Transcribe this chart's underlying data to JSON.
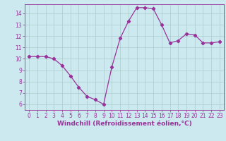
{
  "x": [
    0,
    1,
    2,
    3,
    4,
    5,
    6,
    7,
    8,
    9,
    10,
    11,
    12,
    13,
    14,
    15,
    16,
    17,
    18,
    19,
    20,
    21,
    22,
    23
  ],
  "y": [
    10.2,
    10.2,
    10.2,
    10.0,
    9.4,
    8.5,
    7.5,
    6.7,
    6.4,
    6.0,
    9.3,
    11.8,
    13.3,
    14.5,
    14.5,
    14.4,
    13.0,
    11.4,
    11.6,
    12.2,
    12.1,
    11.4,
    11.4,
    11.5
  ],
  "line_color": "#993399",
  "marker": "D",
  "marker_size": 2.2,
  "background_color": "#cce9f0",
  "grid_color": "#aacccc",
  "xlabel": "Windchill (Refroidissement éolien,°C)",
  "xlabel_color": "#993399",
  "tick_color": "#993399",
  "ylim": [
    5.5,
    14.8
  ],
  "xlim": [
    -0.5,
    23.5
  ],
  "yticks": [
    6,
    7,
    8,
    9,
    10,
    11,
    12,
    13,
    14
  ],
  "xticks": [
    0,
    1,
    2,
    3,
    4,
    5,
    6,
    7,
    8,
    9,
    10,
    11,
    12,
    13,
    14,
    15,
    16,
    17,
    18,
    19,
    20,
    21,
    22,
    23
  ],
  "tick_fontsize": 5.5,
  "xlabel_fontsize": 6.5,
  "line_width": 0.9
}
